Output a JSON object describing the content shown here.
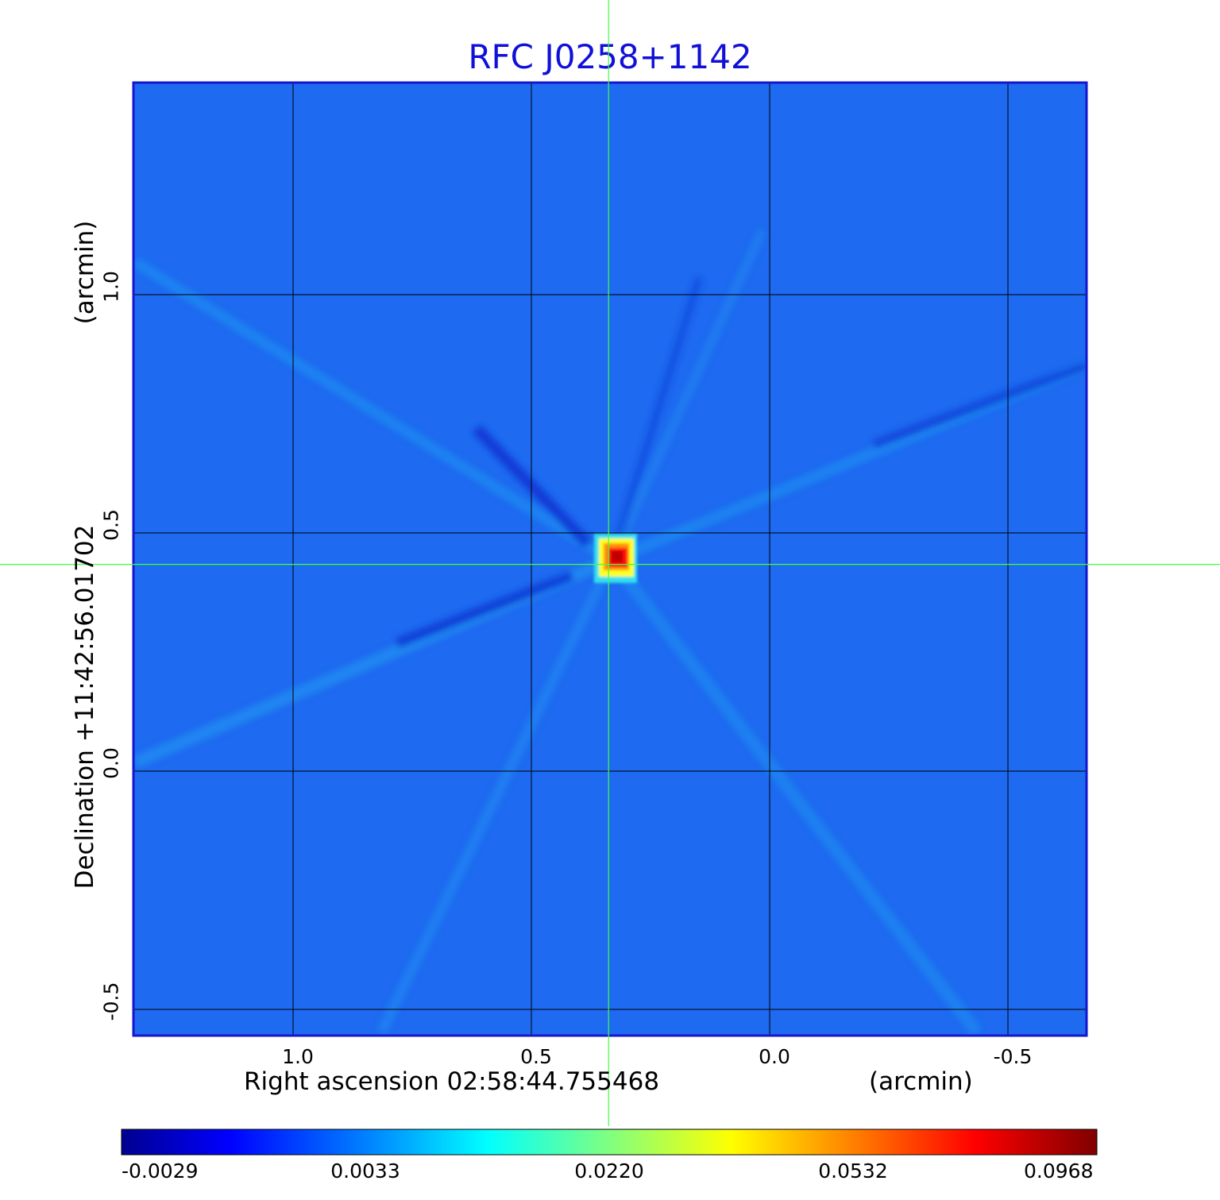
{
  "chart_data": {
    "type": "heatmap",
    "title": "RFC J0258+1142",
    "xlabel": "Right ascension  02:58:44.755468",
    "xunit": "(arcmin)",
    "ylabel": "Declination  +11:42:56.01702",
    "yunit": "(arcmin)",
    "x_ticks": [
      "1.0",
      "0.5",
      "0.0",
      "-0.5"
    ],
    "x_tick_values": [
      1.0,
      0.5,
      0.0,
      -0.5
    ],
    "y_ticks": [
      "1.0",
      "0.5",
      "0.0",
      "-0.5"
    ],
    "y_tick_values": [
      1.0,
      0.5,
      0.0,
      -0.5
    ],
    "xlim": [
      1.335,
      -0.665
    ],
    "ylim": [
      -0.555,
      1.445
    ],
    "grid": true,
    "crosshair": {
      "x": 0.338,
      "y": 0.434
    },
    "source_peak": {
      "x": 0.32,
      "y": 0.44,
      "value": 0.0968
    },
    "colorbar": {
      "ticks": [
        "-0.0029",
        "0.0033",
        "0.0220",
        "0.0532",
        "0.0968"
      ],
      "values": [
        -0.0029,
        0.0033,
        0.022,
        0.0532,
        0.0968
      ],
      "colormap": "jet",
      "colors": [
        "#00008f",
        "#0000ff",
        "#0080ff",
        "#00ffff",
        "#80ff80",
        "#ffff00",
        "#ff8000",
        "#ff0000",
        "#800000"
      ]
    },
    "background_color": "#1e6af0",
    "title_color": "#1010d8",
    "crosshair_color": "#40ff40",
    "frame_color": "#1515d0"
  }
}
